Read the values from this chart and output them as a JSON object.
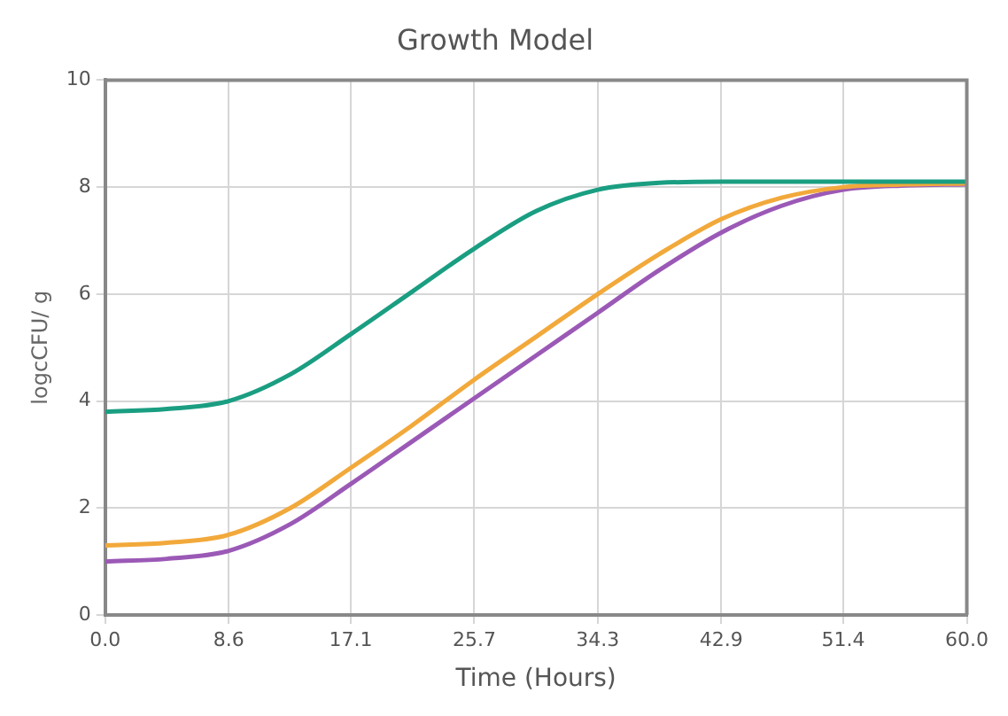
{
  "chart_data": {
    "type": "line",
    "title": "Growth Model",
    "xlabel": "Time (Hours)",
    "ylabel": "logcCFU/ g",
    "xlim": [
      0,
      60
    ],
    "xticks": [
      {
        "value": 0,
        "label": "0.0"
      },
      8.6,
      17.1,
      25.7,
      34.3,
      42.9,
      51.4,
      {
        "value": 60,
        "label": "60.0"
      }
    ],
    "ylim": [
      0,
      10
    ],
    "yticks": [
      0,
      2,
      4,
      6,
      8,
      10
    ],
    "grid": true,
    "legend": false,
    "marker": "none",
    "line_style": "solid",
    "series": [
      {
        "color": "#1a9e82",
        "x": [
          0,
          4.3,
          8.6,
          12.9,
          17.1,
          21.4,
          25.7,
          30,
          34.3,
          38.6,
          42.9,
          51.4,
          60
        ],
        "values": [
          3.8,
          3.85,
          4.0,
          4.5,
          5.25,
          6.05,
          6.85,
          7.55,
          7.95,
          8.08,
          8.1,
          8.1,
          8.1
        ]
      },
      {
        "color": "#f2a93b",
        "x": [
          0,
          4.3,
          8.6,
          12.9,
          17.1,
          21.4,
          25.7,
          30,
          34.3,
          38.6,
          42.9,
          47.1,
          51.4,
          55.7,
          60
        ],
        "values": [
          1.3,
          1.35,
          1.5,
          2.0,
          2.75,
          3.55,
          4.4,
          5.2,
          6.0,
          6.75,
          7.4,
          7.8,
          8.0,
          8.05,
          8.07
        ]
      },
      {
        "color": "#9b59b6",
        "x": [
          0,
          4.3,
          8.6,
          12.9,
          17.1,
          21.4,
          25.7,
          30,
          34.3,
          38.6,
          42.9,
          47.1,
          51.4,
          55.7,
          60
        ],
        "values": [
          1.0,
          1.05,
          1.2,
          1.7,
          2.45,
          3.25,
          4.05,
          4.85,
          5.65,
          6.45,
          7.15,
          7.65,
          7.95,
          8.03,
          8.05
        ]
      }
    ]
  }
}
